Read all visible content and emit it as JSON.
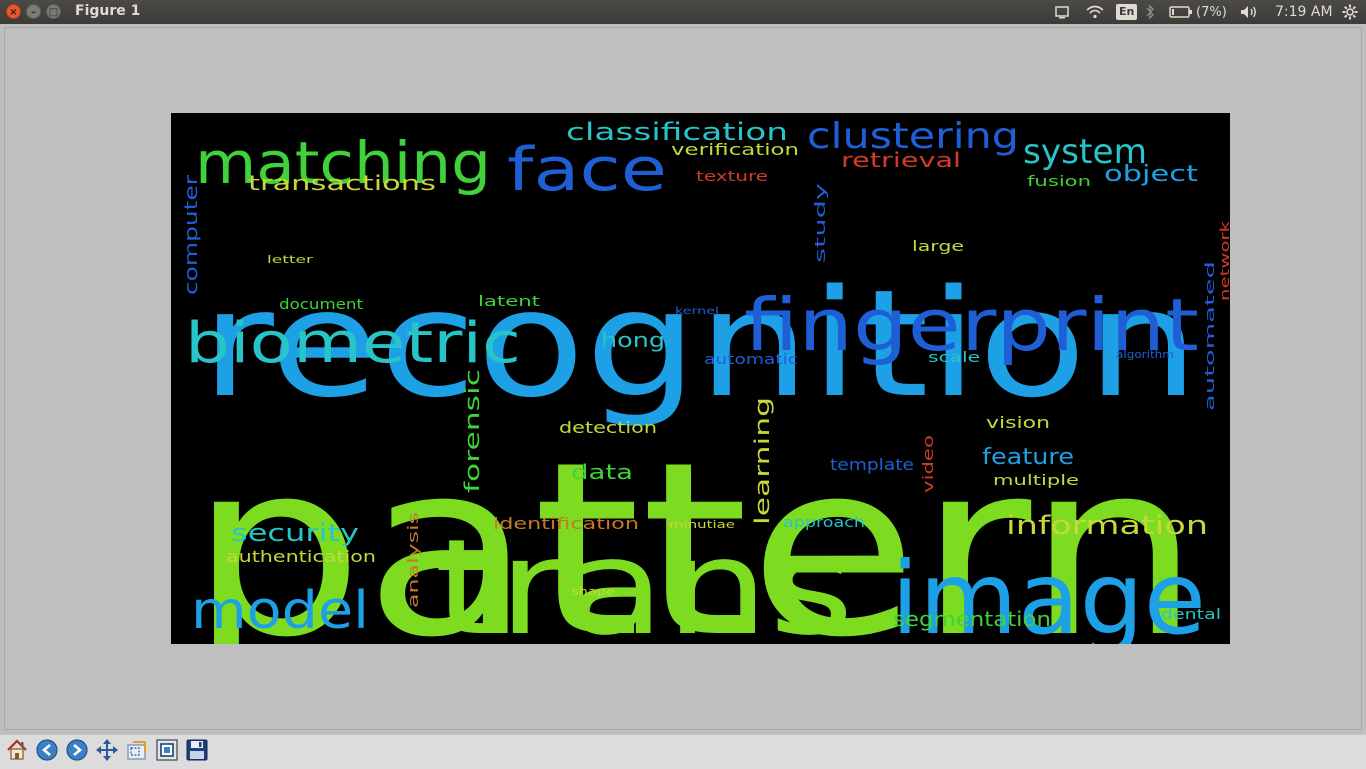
{
  "window": {
    "title": "Figure 1",
    "close_glyph": "×",
    "min_glyph": "–",
    "max_glyph": "□"
  },
  "panel": {
    "keyboard_layout": "En",
    "battery_text": "(7%)",
    "clock": "7:19 AM",
    "icons": [
      "screen-icon",
      "wifi-icon",
      "bluetooth-icon",
      "battery-icon",
      "volume-icon",
      "settings-gear-icon"
    ]
  },
  "toolbar": {
    "tools": [
      "home-icon",
      "back-arrow-icon",
      "forward-arrow-icon",
      "pan-move-icon",
      "zoom-rect-icon",
      "subplots-config-icon",
      "save-disk-icon"
    ]
  },
  "wordcloud": {
    "colors": {
      "bg": "#000000",
      "lime": "#7ddc1f",
      "sky": "#1ea0e6",
      "blue": "#1f5fd6",
      "teal": "#27c4c8",
      "green": "#3fd23a",
      "yellow": "#c8d83a",
      "orange": "#c8782a",
      "red": "#d43a2a"
    },
    "words": [
      {
        "text": "pattern",
        "color": "lime"
      },
      {
        "text": "recognition",
        "color": "sky"
      },
      {
        "text": "trans",
        "color": "lime"
      },
      {
        "text": "image",
        "color": "sky"
      },
      {
        "text": "fingerprint",
        "color": "blue"
      },
      {
        "text": "biometric",
        "color": "teal"
      },
      {
        "text": "matching",
        "color": "green"
      },
      {
        "text": "face",
        "color": "blue"
      },
      {
        "text": "model",
        "color": "sky"
      },
      {
        "text": "clustering",
        "color": "blue"
      },
      {
        "text": "system",
        "color": "teal"
      },
      {
        "text": "classification",
        "color": "teal"
      },
      {
        "text": "information",
        "color": "yellow"
      },
      {
        "text": "security",
        "color": "teal"
      },
      {
        "text": "transactions",
        "color": "yellow"
      },
      {
        "text": "object",
        "color": "sky"
      },
      {
        "text": "feature",
        "color": "sky"
      },
      {
        "text": "segmentation",
        "color": "green"
      },
      {
        "text": "retrieval",
        "color": "red"
      },
      {
        "text": "verification",
        "color": "yellow"
      },
      {
        "text": "authentication",
        "color": "yellow"
      },
      {
        "text": "data",
        "color": "green"
      },
      {
        "text": "hong",
        "color": "teal"
      },
      {
        "text": "identification",
        "color": "orange"
      },
      {
        "text": "detection",
        "color": "yellow"
      },
      {
        "text": "forensic",
        "color": "green"
      },
      {
        "text": "learning",
        "color": "yellow"
      },
      {
        "text": "vision",
        "color": "yellow"
      },
      {
        "text": "multiple",
        "color": "yellow"
      },
      {
        "text": "template",
        "color": "blue"
      },
      {
        "text": "automatic",
        "color": "blue"
      },
      {
        "text": "computer",
        "color": "blue"
      },
      {
        "text": "document",
        "color": "green"
      },
      {
        "text": "latent",
        "color": "green"
      },
      {
        "text": "fusion",
        "color": "green"
      },
      {
        "text": "texture",
        "color": "red"
      },
      {
        "text": "large",
        "color": "yellow"
      },
      {
        "text": "study",
        "color": "blue"
      },
      {
        "text": "scale",
        "color": "teal"
      },
      {
        "text": "approach",
        "color": "teal"
      },
      {
        "text": "dental",
        "color": "teal"
      },
      {
        "text": "video",
        "color": "red"
      },
      {
        "text": "analysis",
        "color": "orange"
      },
      {
        "text": "automated",
        "color": "blue"
      },
      {
        "text": "network",
        "color": "red"
      },
      {
        "text": "minutiae",
        "color": "yellow"
      },
      {
        "text": "shape",
        "color": "yellow"
      },
      {
        "text": "kernel",
        "color": "blue"
      },
      {
        "text": "letter",
        "color": "yellow"
      },
      {
        "text": "algorithm",
        "color": "blue"
      }
    ]
  }
}
